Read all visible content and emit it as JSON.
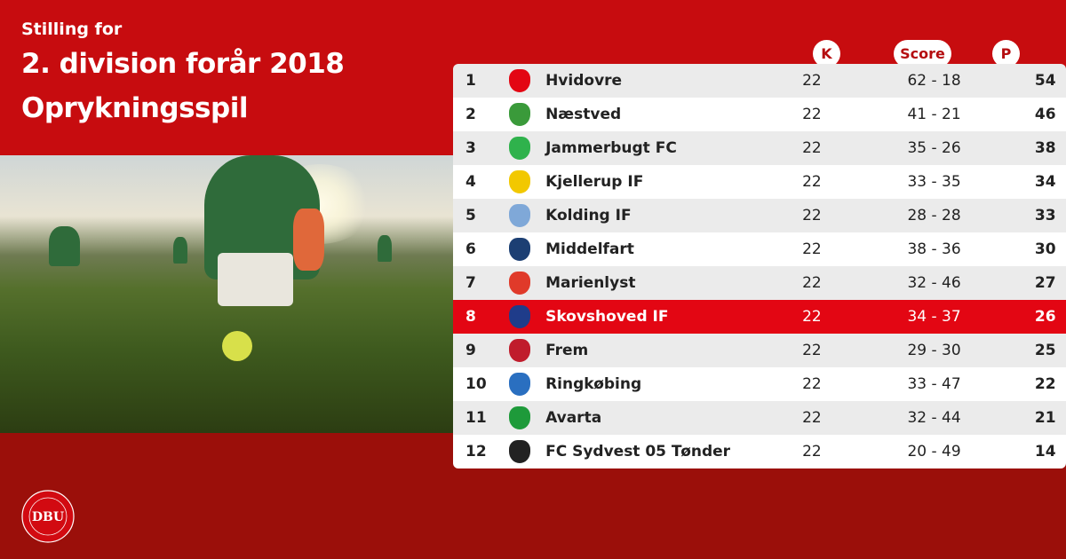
{
  "header": {
    "subtitle": "Stilling for",
    "title_line1": "2. division forår 2018",
    "title_line2": "Oprykningsspil"
  },
  "logo": {
    "text": "DBU",
    "ring_text": "DANSK BOLDSPIL-UNION 1889"
  },
  "colors": {
    "top_red": "#c70c0f",
    "bottom_red": "#9b0f0a",
    "highlight": "#e30613"
  },
  "table": {
    "columns": {
      "k": "K",
      "score": "Score",
      "p": "P"
    },
    "rows": [
      {
        "pos": "1",
        "team": "Hvidovre",
        "k": "22",
        "score": "62 - 18",
        "p": "54",
        "crest": "#e30613"
      },
      {
        "pos": "2",
        "team": "Næstved",
        "k": "22",
        "score": "41 - 21",
        "p": "46",
        "crest": "#3a9a3a"
      },
      {
        "pos": "3",
        "team": "Jammerbugt FC",
        "k": "22",
        "score": "35 - 26",
        "p": "38",
        "crest": "#2fb24c"
      },
      {
        "pos": "4",
        "team": "Kjellerup IF",
        "k": "22",
        "score": "33 - 35",
        "p": "34",
        "crest": "#f2c800"
      },
      {
        "pos": "5",
        "team": "Kolding IF",
        "k": "22",
        "score": "28 - 28",
        "p": "33",
        "crest": "#7fa8d8"
      },
      {
        "pos": "6",
        "team": "Middelfart",
        "k": "22",
        "score": "38 - 36",
        "p": "30",
        "crest": "#1c3f73"
      },
      {
        "pos": "7",
        "team": "Marienlyst",
        "k": "22",
        "score": "32 - 46",
        "p": "27",
        "crest": "#e03a2a"
      },
      {
        "pos": "8",
        "team": "Skovshoved IF",
        "k": "22",
        "score": "34 - 37",
        "p": "26",
        "crest": "#1f3c8a",
        "highlight": true
      },
      {
        "pos": "9",
        "team": "Frem",
        "k": "22",
        "score": "29 - 30",
        "p": "25",
        "crest": "#c01c2c"
      },
      {
        "pos": "10",
        "team": "Ringkøbing",
        "k": "22",
        "score": "33 - 47",
        "p": "22",
        "crest": "#2a6fc0"
      },
      {
        "pos": "11",
        "team": "Avarta",
        "k": "22",
        "score": "32 - 44",
        "p": "21",
        "crest": "#1e9a3a"
      },
      {
        "pos": "12",
        "team": "FC Sydvest 05 Tønder",
        "k": "22",
        "score": "20 - 49",
        "p": "14",
        "crest": "#222222"
      }
    ]
  }
}
